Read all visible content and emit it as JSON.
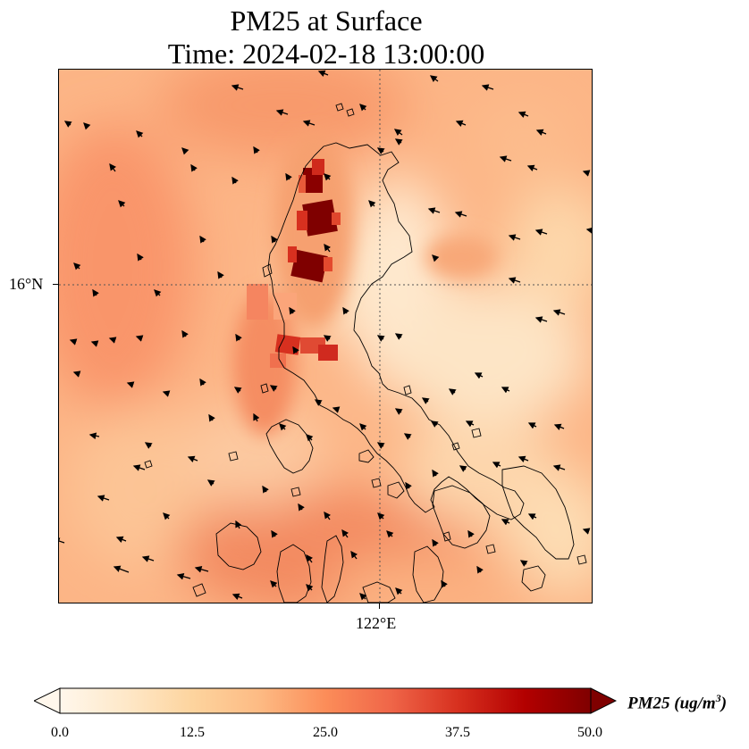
{
  "title": {
    "line1": "PM25 at Surface",
    "line2": "Time: 2024-02-18 13:00:00"
  },
  "map": {
    "lat_label": "16°N",
    "lon_label": "122°E",
    "gridline_style": "dotted",
    "land_outline_color": "#000000"
  },
  "colorbar": {
    "label_main": "PM25 (ug/m",
    "label_sup": "3",
    "label_end": ")",
    "colormap": "OrRd",
    "min": 0.0,
    "max": 50.0,
    "extend": "both",
    "ticks": [
      "0.0",
      "12.5",
      "25.0",
      "37.5",
      "50.0"
    ],
    "colors": [
      "#fff7ec",
      "#fee8c8",
      "#fdd49e",
      "#fdbb84",
      "#fc8d59",
      "#ef6548",
      "#d7301f",
      "#b30000",
      "#7f0000"
    ]
  }
}
